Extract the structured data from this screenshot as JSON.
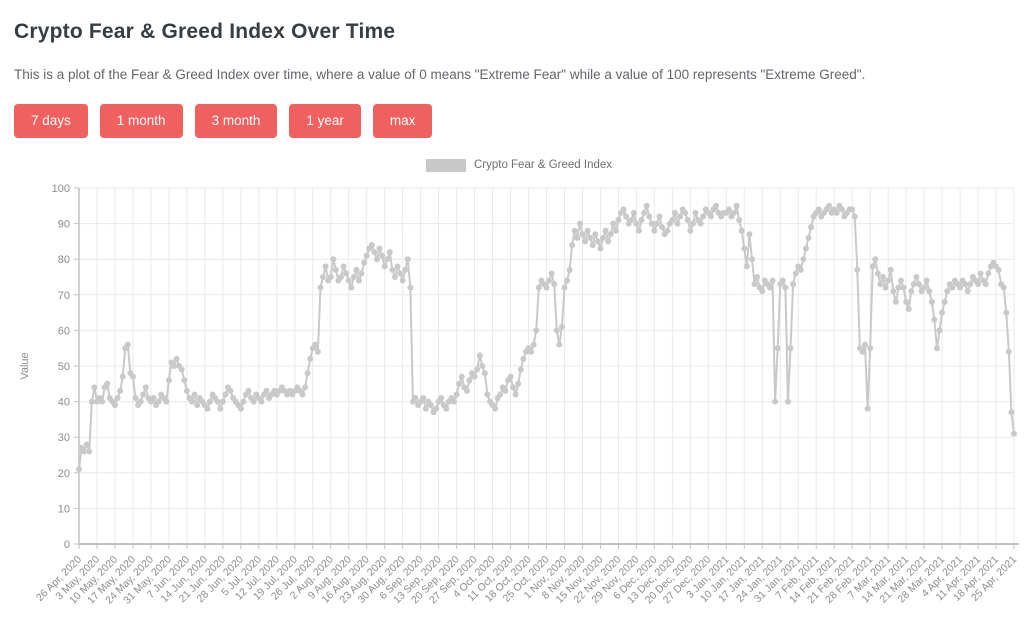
{
  "header": {
    "title": "Crypto Fear & Greed Index Over Time",
    "description": "This is a plot of the Fear & Greed Index over time, where a value of 0 means \"Extreme Fear\" while a value of 100 represents \"Extreme Greed\"."
  },
  "buttons": [
    {
      "label": "7 days"
    },
    {
      "label": "1 month"
    },
    {
      "label": "3 month"
    },
    {
      "label": "1 year"
    },
    {
      "label": "max"
    }
  ],
  "theme": {
    "accent": "#f0605e",
    "title_color": "#383d41",
    "text_color": "#63666a",
    "series_color": "#c9c9c9",
    "legend_swatch_color": "#c8c8c8",
    "grid_color": "#e9e9e9",
    "axis_color": "#c2c2c2",
    "tick_label_color": "#8d8d8d"
  },
  "chart_data": {
    "type": "line",
    "title": "Crypto Fear & Greed Index Over Time",
    "legend": "Crypto Fear & Greed Index",
    "ylabel": "Value",
    "xlabel": "",
    "ylim": [
      0,
      100
    ],
    "ytick_step": 10,
    "grid": true,
    "legend_position": "top-center",
    "points_per_tick": 7,
    "x_tick_labels": [
      "26 Apr, 2020",
      "3 May, 2020",
      "10 May, 2020",
      "17 May, 2020",
      "24 May, 2020",
      "31 May, 2020",
      "7 Jun, 2020",
      "14 Jun, 2020",
      "21 Jun, 2020",
      "28 Jun, 2020",
      "5 Jul, 2020",
      "12 Jul, 2020",
      "19 Jul, 2020",
      "26 Jul, 2020",
      "2 Aug, 2020",
      "9 Aug, 2020",
      "16 Aug, 2020",
      "23 Aug, 2020",
      "30 Aug, 2020",
      "6 Sep, 2020",
      "13 Sep, 2020",
      "20 Sep, 2020",
      "27 Sep, 2020",
      "4 Oct, 2020",
      "11 Oct, 2020",
      "18 Oct, 2020",
      "25 Oct, 2020",
      "1 Nov, 2020",
      "8 Nov, 2020",
      "15 Nov, 2020",
      "22 Nov, 2020",
      "29 Nov, 2020",
      "6 Dec, 2020",
      "13 Dec, 2020",
      "20 Dec, 2020",
      "27 Dec, 2020",
      "3 Jan, 2021",
      "10 Jan, 2021",
      "17 Jan, 2021",
      "24 Jan, 2021",
      "31 Jan, 2021",
      "7 Feb, 2021",
      "14 Feb, 2021",
      "21 Feb, 2021",
      "28 Feb, 2021",
      "7 Mar, 2021",
      "14 Mar, 2021",
      "21 Mar, 2021",
      "28 Mar, 2021",
      "4 Apr, 2021",
      "11 Apr, 2021",
      "18 Apr, 2021",
      "25 Apr, 2021"
    ],
    "values": [
      21,
      27,
      26,
      28,
      26,
      40,
      44,
      40,
      41,
      40,
      44,
      45,
      41,
      40,
      39,
      41,
      43,
      47,
      55,
      56,
      48,
      47,
      41,
      39,
      40,
      42,
      44,
      41,
      40,
      41,
      39,
      40,
      42,
      41,
      40,
      46,
      51,
      50,
      52,
      50,
      49,
      46,
      43,
      41,
      40,
      42,
      39,
      41,
      40,
      39,
      38,
      40,
      42,
      41,
      40,
      38,
      40,
      42,
      44,
      43,
      41,
      40,
      39,
      38,
      40,
      42,
      43,
      41,
      40,
      42,
      41,
      40,
      42,
      43,
      41,
      42,
      43,
      42,
      43,
      44,
      43,
      42,
      43,
      42,
      43,
      44,
      43,
      42,
      44,
      48,
      52,
      55,
      56,
      54,
      72,
      75,
      78,
      74,
      75,
      80,
      77,
      74,
      75,
      78,
      76,
      74,
      72,
      75,
      77,
      74,
      76,
      79,
      81,
      83,
      84,
      82,
      80,
      83,
      81,
      78,
      80,
      82,
      77,
      75,
      78,
      76,
      74,
      77,
      80,
      72,
      40,
      41,
      39,
      40,
      41,
      38,
      40,
      39,
      37,
      38,
      40,
      41,
      39,
      38,
      40,
      41,
      40,
      42,
      45,
      47,
      44,
      43,
      46,
      48,
      47,
      49,
      53,
      50,
      48,
      42,
      40,
      39,
      38,
      41,
      42,
      44,
      43,
      46,
      47,
      44,
      42,
      45,
      49,
      52,
      54,
      55,
      54,
      56,
      60,
      72,
      74,
      73,
      72,
      74,
      76,
      73,
      60,
      56,
      61,
      72,
      74,
      77,
      84,
      88,
      86,
      90,
      87,
      85,
      88,
      86,
      84,
      87,
      85,
      83,
      86,
      88,
      85,
      87,
      90,
      88,
      91,
      93,
      94,
      92,
      90,
      91,
      93,
      90,
      88,
      91,
      93,
      95,
      92,
      90,
      88,
      90,
      92,
      89,
      87,
      88,
      90,
      91,
      93,
      90,
      92,
      94,
      93,
      91,
      88,
      90,
      93,
      91,
      90,
      92,
      94,
      93,
      92,
      94,
      95,
      93,
      92,
      93,
      93,
      94,
      92,
      93,
      95,
      91,
      88,
      83,
      78,
      87,
      80,
      73,
      75,
      72,
      71,
      74,
      73,
      72,
      74,
      40,
      55,
      73,
      74,
      72,
      40,
      55,
      73,
      76,
      78,
      77,
      80,
      83,
      86,
      89,
      92,
      93,
      94,
      92,
      93,
      94,
      95,
      93,
      94,
      93,
      95,
      94,
      92,
      93,
      94,
      94,
      92,
      77,
      55,
      54,
      56,
      38,
      55,
      78,
      80,
      76,
      73,
      75,
      72,
      74,
      77,
      71,
      68,
      72,
      74,
      72,
      68,
      66,
      71,
      73,
      75,
      73,
      71,
      72,
      74,
      71,
      68,
      63,
      55,
      60,
      65,
      68,
      71,
      73,
      72,
      74,
      73,
      72,
      74,
      73,
      71,
      73,
      75,
      74,
      73,
      76,
      74,
      73,
      76,
      78,
      79,
      78,
      77,
      73,
      72,
      65,
      54,
      37,
      31
    ]
  }
}
